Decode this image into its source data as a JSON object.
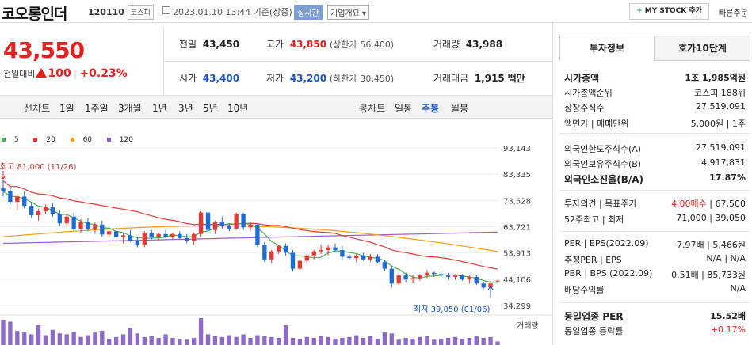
{
  "header": {
    "title": "코오롱인더",
    "code": "120110",
    "market": "코스피",
    "datetime": "2023.01.10 13:44 기준(장중)",
    "realtime": "실시간",
    "overview": "기업개요 ▾",
    "mystock": "MY STOCK 추가",
    "mystock_plus": "+",
    "quick_order": "빠른주문"
  },
  "price": {
    "current": "43,550",
    "change_label": "전일대비",
    "change": "100",
    "change_pct": "+0.23%"
  },
  "summary": {
    "prev_label": "전일",
    "prev": "43,450",
    "high_label": "고가",
    "high": "43,850",
    "upper_label": "(상한가",
    "upper": "56,400)",
    "volume_label": "거래량",
    "volume": "43,988",
    "open_label": "시가",
    "open": "43,400",
    "low_label": "저가",
    "low": "43,200",
    "lower_label": "(하한가",
    "lower": "30,450)",
    "amount_label": "거래대금",
    "amount": "1,915",
    "amount_unit": "백만"
  },
  "chart_tabs": {
    "line_label": "선차트",
    "periods": [
      "1일",
      "1주일",
      "3개월",
      "1년",
      "3년",
      "5년",
      "10년"
    ],
    "candle_label": "봉차트",
    "candles": [
      "일봉",
      "주봉",
      "월봉"
    ],
    "active_candle": "주봉"
  },
  "chart_data": {
    "type": "candlestick",
    "legend": [
      {
        "name": "5",
        "color": "#4caf50"
      },
      {
        "name": "20",
        "color": "#e53935"
      },
      {
        "name": "60",
        "color": "#f59c1a"
      },
      {
        "name": "120",
        "color": "#9c59c8"
      }
    ],
    "yticks": [
      "93,143",
      "83,335",
      "73,528",
      "63,721",
      "53,913",
      "44,106",
      "34,299"
    ],
    "ylim": [
      34299,
      93143
    ],
    "high_annotation": "최고 81,000 (11/26)",
    "low_annotation": "최저 39,050 (01/06)",
    "volume_label": "거래량",
    "candles": [
      [
        78000,
        81000,
        75000,
        77000
      ],
      [
        77000,
        78500,
        72000,
        73000
      ],
      [
        73000,
        76000,
        70000,
        75000
      ],
      [
        75000,
        77000,
        70500,
        71500
      ],
      [
        71500,
        73000,
        67000,
        68000
      ],
      [
        68000,
        70500,
        66000,
        69500
      ],
      [
        69500,
        72000,
        68500,
        71000
      ],
      [
        71000,
        72500,
        67500,
        68500
      ],
      [
        68500,
        70000,
        64000,
        65000
      ],
      [
        65000,
        68500,
        64000,
        67500
      ],
      [
        67500,
        69000,
        62000,
        62800
      ],
      [
        62800,
        66500,
        61500,
        65500
      ],
      [
        65500,
        67000,
        62000,
        63000
      ],
      [
        63000,
        65500,
        61000,
        64500
      ],
      [
        64500,
        66000,
        60000,
        60800
      ],
      [
        60800,
        63000,
        59500,
        62000
      ],
      [
        62000,
        64000,
        59000,
        59800
      ],
      [
        59800,
        61500,
        57500,
        60500
      ],
      [
        60500,
        62500,
        58000,
        58500
      ],
      [
        58500,
        60000,
        56000,
        57000
      ],
      [
        57000,
        62000,
        56000,
        61500
      ],
      [
        61500,
        62500,
        59000,
        59700
      ],
      [
        59700,
        61500,
        58500,
        61000
      ],
      [
        61000,
        62500,
        59500,
        60000
      ],
      [
        60000,
        61500,
        59000,
        61000
      ],
      [
        61000,
        62000,
        59000,
        59500
      ],
      [
        59500,
        61000,
        57500,
        58500
      ],
      [
        58500,
        61500,
        57000,
        61000
      ],
      [
        61000,
        69500,
        60000,
        69000
      ],
      [
        69000,
        70000,
        61500,
        62500
      ],
      [
        62500,
        66000,
        61000,
        65500
      ],
      [
        65500,
        67500,
        63000,
        64000
      ],
      [
        64000,
        65000,
        62000,
        63000
      ],
      [
        63000,
        69000,
        62500,
        68500
      ],
      [
        68500,
        69000,
        62500,
        63500
      ],
      [
        63500,
        65500,
        62000,
        64500
      ],
      [
        64500,
        65000,
        56000,
        57000
      ],
      [
        57000,
        58000,
        50500,
        51500
      ],
      [
        51500,
        55000,
        50000,
        54500
      ],
      [
        54500,
        57000,
        53500,
        56500
      ],
      [
        56500,
        57500,
        53000,
        54000
      ],
      [
        54000,
        55000,
        47000,
        48000
      ],
      [
        48000,
        51500,
        47500,
        51000
      ],
      [
        51000,
        53500,
        50000,
        53000
      ],
      [
        53000,
        55000,
        51500,
        54500
      ],
      [
        54500,
        57000,
        53500,
        55000
      ],
      [
        55000,
        57000,
        53000,
        56000
      ],
      [
        56000,
        57500,
        54500,
        55000
      ],
      [
        55000,
        56500,
        51500,
        52500
      ],
      [
        52500,
        53500,
        51500,
        52000
      ],
      [
        52000,
        53500,
        50500,
        53000
      ],
      [
        53000,
        54000,
        51000,
        51500
      ],
      [
        51500,
        53500,
        50500,
        52500
      ],
      [
        52500,
        53500,
        50000,
        50500
      ],
      [
        50500,
        51500,
        47000,
        48000
      ],
      [
        48000,
        49000,
        41000,
        42500
      ],
      [
        42500,
        46500,
        42000,
        45500
      ],
      [
        45500,
        46500,
        43000,
        44000
      ],
      [
        44000,
        45500,
        42500,
        44500
      ],
      [
        44500,
        46000,
        43500,
        45500
      ],
      [
        45500,
        47500,
        44500,
        46500
      ],
      [
        46500,
        47000,
        45000,
        46000
      ],
      [
        46000,
        47000,
        45000,
        45500
      ],
      [
        45500,
        46500,
        44000,
        45000
      ],
      [
        45000,
        46000,
        44000,
        45500
      ],
      [
        45500,
        46000,
        43500,
        44000
      ],
      [
        44000,
        45500,
        42500,
        45000
      ],
      [
        45000,
        45500,
        42000,
        42500
      ],
      [
        42500,
        43000,
        40500,
        41000
      ],
      [
        41000,
        43500,
        39050,
        42500
      ],
      [
        43400,
        43850,
        43200,
        43550
      ]
    ],
    "volumes": [
      28,
      26,
      16,
      14,
      12,
      22,
      11,
      17,
      13,
      12,
      15,
      9,
      11,
      14,
      16,
      7,
      9,
      12,
      19,
      13,
      9,
      10,
      8,
      12,
      8,
      7,
      6,
      8,
      30,
      12,
      10,
      9,
      11,
      9,
      12,
      8,
      11,
      10,
      9,
      8,
      22,
      8,
      7,
      9,
      8,
      10,
      9,
      7,
      8,
      9,
      11,
      8,
      10,
      7,
      14,
      13,
      6,
      8,
      7,
      9,
      10,
      6,
      7,
      8,
      9,
      7,
      8,
      10,
      8,
      9,
      4
    ]
  },
  "side": {
    "tab_active": "투자정보",
    "tab_other": "호가10단계",
    "rows": [
      {
        "l": "시가총액",
        "r": "1조 1,985억원",
        "bold": true
      },
      {
        "l": "시가총액순위",
        "r": "코스피 188위"
      },
      {
        "l": "상장주식수",
        "r": "27,519,091"
      },
      {
        "l": "액면가 | 매매단위",
        "r": "5,000원 | 1주"
      },
      {
        "l": "외국인한도주식수(A)",
        "r": "27,519,091"
      },
      {
        "l": "외국인보유주식수(B)",
        "r": "4,917,831"
      },
      {
        "l": "외국인소진율(B/A)",
        "r": "17.87%",
        "bold": true
      },
      {
        "l": "투자의견 | 목표주가",
        "r_red": "4.00매수",
        "r": "| 67,500"
      },
      {
        "l": "52주최고 | 최저",
        "r": "71,000 | 39,050"
      },
      {
        "l": "PER | EPS(2022.09)",
        "r": "7.97배 | 5,466원"
      },
      {
        "l": "추정PER | EPS",
        "r": "N/A | N/A"
      },
      {
        "l": "PBR | BPS (2022.09)",
        "r": "0.51배 | 85,733원"
      },
      {
        "l": "배당수익률",
        "r": "N/A"
      },
      {
        "l": "동일업종 PER",
        "r": "15.52배",
        "bold": true
      },
      {
        "l": "동일업종 등락률",
        "r_red": "+0.17%",
        "r": ""
      }
    ]
  }
}
